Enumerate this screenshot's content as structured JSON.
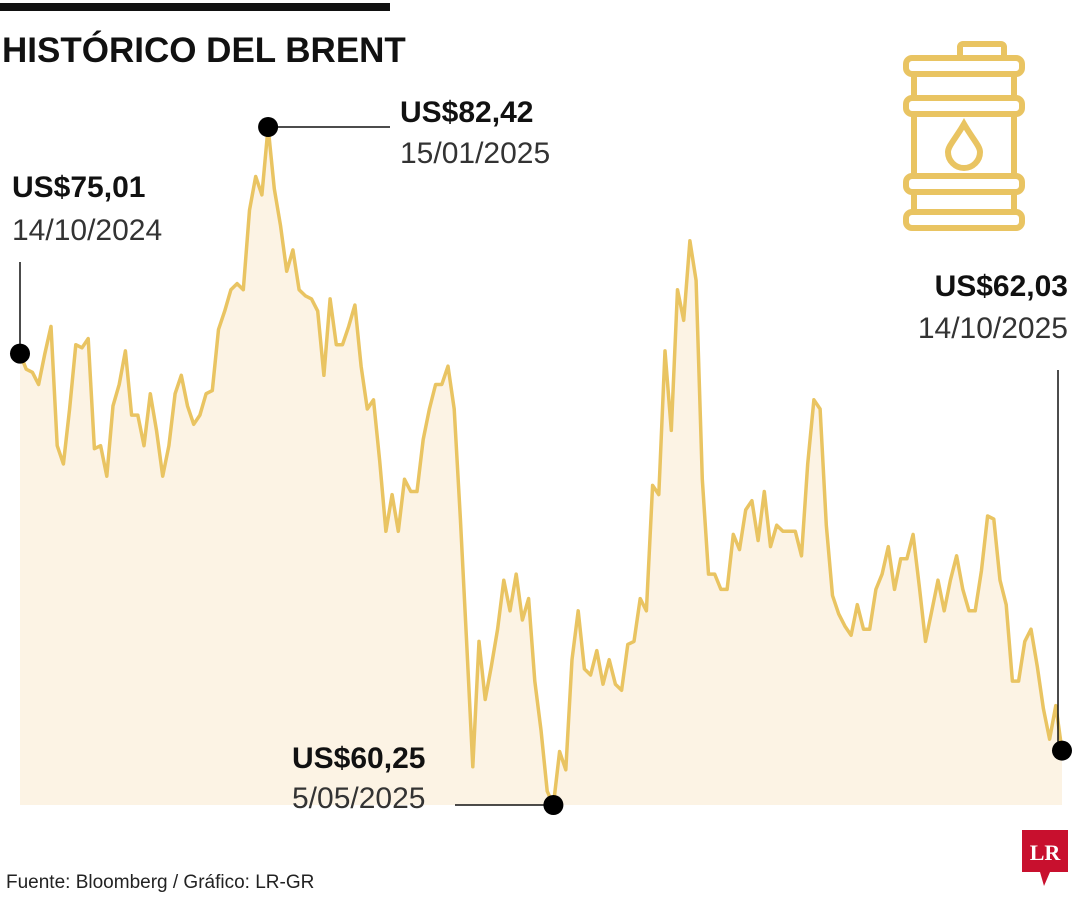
{
  "chart_data": {
    "type": "area",
    "title": "HISTÓRICO DEL BRENT",
    "source": "Fuente: Bloomberg / Gráfico: LR-GR",
    "logo": "LR",
    "color": "#e9c462",
    "fill": "#fcf3e4",
    "values": [
      75.01,
      74.5,
      74.4,
      74.0,
      75.0,
      75.9,
      72.0,
      71.4,
      73.2,
      75.3,
      75.2,
      75.5,
      71.9,
      72.0,
      71.0,
      73.3,
      74.0,
      75.1,
      73.0,
      73.0,
      72.0,
      73.7,
      72.5,
      71.0,
      72.0,
      73.7,
      74.3,
      73.3,
      72.7,
      73.0,
      73.7,
      73.8,
      75.8,
      76.4,
      77.1,
      77.3,
      77.1,
      79.7,
      80.8,
      80.2,
      82.42,
      80.4,
      79.2,
      77.7,
      78.4,
      77.1,
      76.9,
      76.8,
      76.4,
      74.3,
      76.8,
      75.3,
      75.3,
      75.9,
      76.6,
      74.6,
      73.2,
      73.5,
      71.5,
      69.2,
      70.4,
      69.2,
      70.9,
      70.5,
      70.5,
      72.2,
      73.2,
      74.0,
      74.0,
      74.6,
      73.2,
      69.6,
      65.6,
      61.5,
      65.6,
      63.7,
      64.8,
      66.0,
      67.6,
      66.6,
      67.8,
      66.3,
      67.0,
      64.3,
      62.7,
      60.7,
      60.25,
      62.0,
      61.4,
      65.0,
      66.6,
      64.7,
      64.5,
      65.3,
      64.2,
      65.0,
      64.2,
      64.0,
      65.5,
      65.6,
      67.0,
      66.6,
      70.7,
      70.4,
      75.1,
      72.5,
      77.1,
      76.1,
      78.7,
      77.4,
      70.9,
      67.8,
      67.8,
      67.3,
      67.3,
      69.1,
      68.6,
      69.9,
      70.2,
      68.9,
      70.5,
      68.7,
      69.4,
      69.2,
      69.2,
      69.2,
      68.4,
      71.4,
      73.5,
      73.2,
      69.4,
      67.1,
      66.5,
      66.1,
      65.8,
      66.8,
      66.0,
      66.0,
      67.3,
      67.8,
      68.7,
      67.3,
      68.3,
      68.3,
      69.1,
      67.4,
      65.6,
      66.6,
      67.6,
      66.6,
      67.6,
      68.4,
      67.3,
      66.6,
      66.6,
      67.9,
      69.7,
      69.6,
      67.6,
      66.8,
      64.3,
      64.3,
      65.6,
      66.0,
      64.8,
      63.4,
      62.4,
      63.5,
      62.03
    ],
    "annotations": [
      {
        "value": 75.01,
        "label": "US$75,01",
        "date": "14/10/2024"
      },
      {
        "value": 82.42,
        "label": "US$82,42",
        "date": "15/01/2025"
      },
      {
        "value": 60.25,
        "label": "US$60,25",
        "date": "5/05/2025"
      },
      {
        "value": 62.03,
        "label": "US$62,03",
        "date": "14/10/2025"
      }
    ]
  }
}
